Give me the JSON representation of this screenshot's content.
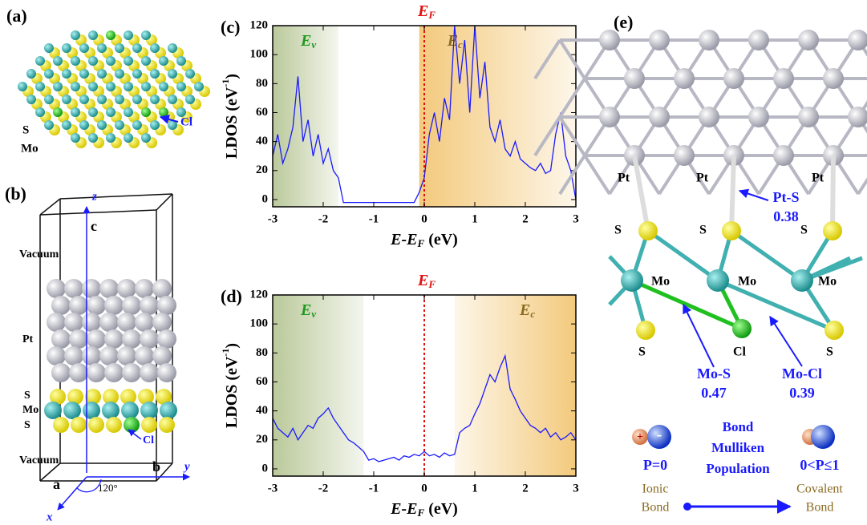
{
  "chart_data": [
    {
      "type": "line",
      "panel": "(c)",
      "color": "#1a1aff",
      "xlabel": {
        "text": "E-E",
        "sub": "F",
        "unit": "(eV)"
      },
      "ylabel": {
        "text": "LDOS (eV",
        "sup": "-1",
        "end": ")"
      },
      "xlim": [
        -3,
        3
      ],
      "ylim": [
        -5,
        120
      ],
      "xticks": [
        -3,
        -2,
        -1,
        0,
        1,
        2,
        3
      ],
      "yticks": [
        0,
        20,
        40,
        60,
        80,
        100,
        120
      ],
      "regions": [
        {
          "label": "E",
          "sub": "v",
          "from": -3,
          "to": -1.7,
          "color": "#b3c38f",
          "text_color": "#1f9a1f"
        },
        {
          "label": "E",
          "sub": "c",
          "from": -0.1,
          "to": 3,
          "color": "#f2c46e",
          "text_color": "#8a6a20"
        }
      ],
      "vline": {
        "x": 0,
        "label": "E",
        "sub": "F",
        "color": "#e01010"
      },
      "x": [
        -3.0,
        -2.9,
        -2.8,
        -2.7,
        -2.6,
        -2.5,
        -2.4,
        -2.3,
        -2.2,
        -2.1,
        -2.0,
        -1.9,
        -1.8,
        -1.7,
        -1.6,
        -1.5,
        -1.4,
        -1.3,
        -1.2,
        -1.1,
        -1.0,
        -0.9,
        -0.8,
        -0.7,
        -0.6,
        -0.5,
        -0.4,
        -0.3,
        -0.2,
        -0.1,
        0.0,
        0.1,
        0.2,
        0.3,
        0.4,
        0.5,
        0.6,
        0.7,
        0.8,
        0.9,
        1.0,
        1.1,
        1.2,
        1.3,
        1.4,
        1.5,
        1.6,
        1.7,
        1.8,
        1.9,
        2.0,
        2.1,
        2.2,
        2.3,
        2.4,
        2.5,
        2.6,
        2.7,
        2.8,
        2.9,
        3.0
      ],
      "values": [
        30,
        45,
        25,
        35,
        50,
        85,
        40,
        55,
        30,
        45,
        25,
        35,
        20,
        15,
        -2,
        -2,
        -2,
        -2,
        -2,
        -2,
        -2,
        -2,
        -2,
        -2,
        -2,
        -2,
        -2,
        -2,
        -2,
        5,
        15,
        45,
        60,
        40,
        70,
        55,
        120,
        80,
        110,
        60,
        120,
        70,
        95,
        50,
        40,
        55,
        35,
        30,
        40,
        28,
        25,
        22,
        20,
        25,
        18,
        20,
        45,
        60,
        30,
        20,
        0
      ]
    },
    {
      "type": "line",
      "panel": "(d)",
      "color": "#1a1aff",
      "xlabel": {
        "text": "E-E",
        "sub": "F",
        "unit": "(eV)"
      },
      "ylabel": {
        "text": "LDOS (eV",
        "sup": "-1",
        "end": ")"
      },
      "xlim": [
        -3,
        3
      ],
      "ylim": [
        -5,
        120
      ],
      "xticks": [
        -3,
        -2,
        -1,
        0,
        1,
        2,
        3
      ],
      "yticks": [
        0,
        20,
        40,
        60,
        80,
        100,
        120
      ],
      "regions": [
        {
          "label": "E",
          "sub": "v",
          "from": -3,
          "to": -1.2,
          "color": "#b3c38f",
          "text_color": "#1f9a1f"
        },
        {
          "label": "E",
          "sub": "c",
          "from": 0.6,
          "to": 3,
          "color": "#f2c46e",
          "text_color": "#8a6a20"
        }
      ],
      "vline": {
        "x": 0,
        "label": "E",
        "sub": "F",
        "color": "#e01010"
      },
      "x": [
        -3.0,
        -2.9,
        -2.8,
        -2.7,
        -2.6,
        -2.5,
        -2.4,
        -2.3,
        -2.2,
        -2.1,
        -2.0,
        -1.9,
        -1.8,
        -1.7,
        -1.6,
        -1.5,
        -1.4,
        -1.3,
        -1.2,
        -1.1,
        -1.0,
        -0.9,
        -0.8,
        -0.7,
        -0.6,
        -0.5,
        -0.4,
        -0.3,
        -0.2,
        -0.1,
        0.0,
        0.1,
        0.2,
        0.3,
        0.4,
        0.5,
        0.6,
        0.7,
        0.8,
        0.9,
        1.0,
        1.1,
        1.2,
        1.3,
        1.4,
        1.5,
        1.6,
        1.7,
        1.8,
        1.9,
        2.0,
        2.1,
        2.2,
        2.3,
        2.4,
        2.5,
        2.6,
        2.7,
        2.8,
        2.9,
        3.0
      ],
      "values": [
        35,
        28,
        25,
        22,
        28,
        20,
        25,
        30,
        28,
        35,
        38,
        42,
        35,
        30,
        25,
        20,
        18,
        15,
        12,
        6,
        7,
        5,
        6,
        7,
        8,
        6,
        9,
        8,
        10,
        9,
        12,
        9,
        10,
        8,
        11,
        9,
        10,
        25,
        28,
        30,
        38,
        45,
        55,
        65,
        60,
        70,
        78,
        55,
        48,
        40,
        35,
        30,
        28,
        25,
        28,
        22,
        25,
        20,
        22,
        25,
        20
      ]
    }
  ],
  "panel_a": {
    "label": "(a)",
    "s": "S",
    "mo": "Mo",
    "cl": "Cl"
  },
  "panel_b": {
    "label": "(b)",
    "z": "z",
    "c": "c",
    "vacuum_top": "Vacuum",
    "pt": "Pt",
    "s_top": "S",
    "mo": "Mo",
    "s_bottom": "S",
    "cl": "Cl",
    "vacuum_bottom": "Vacuum",
    "a": "a",
    "b": "b",
    "y": "y",
    "x": "x",
    "angle": "120°"
  },
  "panel_e": {
    "label": "(e)",
    "pt": [
      "Pt",
      "Pt",
      "Pt"
    ],
    "s_top": [
      "S",
      "S",
      "S"
    ],
    "mo": [
      "Mo",
      "Mo",
      "Mo"
    ],
    "bottom": [
      "S",
      "Cl",
      "S"
    ],
    "bonds": [
      {
        "name": "Pt-S",
        "population": "0.38"
      },
      {
        "name": "Mo-S",
        "population": "0.47"
      },
      {
        "name": "Mo-Cl",
        "population": "0.39"
      }
    ],
    "legend": {
      "plus": "+",
      "minus": "-",
      "ionic_p": "P=0",
      "center": [
        "Bond",
        "Mulliken",
        "Population"
      ],
      "covalent_p": "0<P≤1",
      "ionic": [
        "Ionic",
        "Bond"
      ],
      "covalent": [
        "Covalent",
        "Bond"
      ]
    }
  }
}
